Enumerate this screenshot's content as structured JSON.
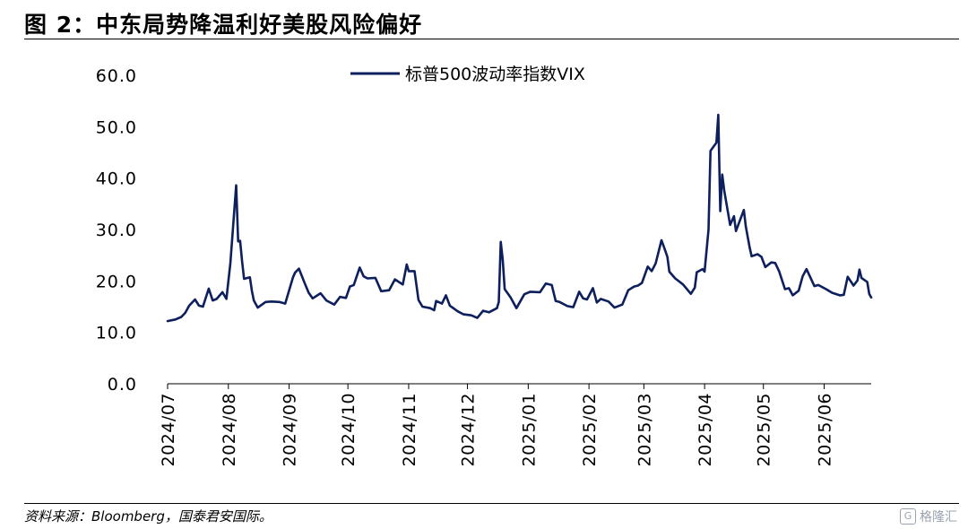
{
  "header": {
    "title": "图 2：中东局势降温利好美股风险偏好"
  },
  "footer": {
    "source": "资料来源：Bloomberg，国泰君安国际。"
  },
  "watermark": {
    "icon": "watermark-logo-icon",
    "text": "格隆汇"
  },
  "chart_data": {
    "type": "line",
    "series": [
      {
        "name": "标普500波动率指数VIX",
        "color": "#0d1f5c",
        "points": [
          [
            "2024-07-01",
            12.2
          ],
          [
            "2024-07-05",
            12.5
          ],
          [
            "2024-07-08",
            13.0
          ],
          [
            "2024-07-10",
            13.8
          ],
          [
            "2024-07-12",
            15.2
          ],
          [
            "2024-07-15",
            16.4
          ],
          [
            "2024-07-17",
            15.2
          ],
          [
            "2024-07-19",
            15.0
          ],
          [
            "2024-07-22",
            18.5
          ],
          [
            "2024-07-24",
            16.2
          ],
          [
            "2024-07-26",
            16.5
          ],
          [
            "2024-07-29",
            17.8
          ],
          [
            "2024-07-31",
            16.5
          ],
          [
            "2024-08-02",
            23.4
          ],
          [
            "2024-08-05",
            38.6
          ],
          [
            "2024-08-06",
            27.7
          ],
          [
            "2024-08-07",
            27.8
          ],
          [
            "2024-08-08",
            23.8
          ],
          [
            "2024-08-09",
            20.4
          ],
          [
            "2024-08-12",
            20.7
          ],
          [
            "2024-08-13",
            18.1
          ],
          [
            "2024-08-14",
            16.2
          ],
          [
            "2024-08-16",
            14.8
          ],
          [
            "2024-08-20",
            15.9
          ],
          [
            "2024-08-23",
            16.0
          ],
          [
            "2024-08-27",
            15.9
          ],
          [
            "2024-08-30",
            15.6
          ],
          [
            "2024-09-03",
            20.7
          ],
          [
            "2024-09-04",
            21.6
          ],
          [
            "2024-09-06",
            22.4
          ],
          [
            "2024-09-09",
            19.5
          ],
          [
            "2024-09-11",
            17.7
          ],
          [
            "2024-09-13",
            16.6
          ],
          [
            "2024-09-17",
            17.6
          ],
          [
            "2024-09-20",
            16.2
          ],
          [
            "2024-09-24",
            15.4
          ],
          [
            "2024-09-27",
            16.9
          ],
          [
            "2024-09-30",
            16.7
          ],
          [
            "2024-10-02",
            18.9
          ],
          [
            "2024-10-04",
            19.2
          ],
          [
            "2024-10-07",
            22.6
          ],
          [
            "2024-10-09",
            20.9
          ],
          [
            "2024-10-11",
            20.5
          ],
          [
            "2024-10-15",
            20.6
          ],
          [
            "2024-10-18",
            18.0
          ],
          [
            "2024-10-22",
            18.2
          ],
          [
            "2024-10-25",
            20.3
          ],
          [
            "2024-10-29",
            19.3
          ],
          [
            "2024-10-31",
            23.2
          ],
          [
            "2024-11-01",
            21.9
          ],
          [
            "2024-11-04",
            21.9
          ],
          [
            "2024-11-06",
            16.3
          ],
          [
            "2024-11-08",
            15.0
          ],
          [
            "2024-11-12",
            14.7
          ],
          [
            "2024-11-14",
            14.3
          ],
          [
            "2024-11-15",
            16.1
          ],
          [
            "2024-11-18",
            15.6
          ],
          [
            "2024-11-20",
            17.2
          ],
          [
            "2024-11-22",
            15.2
          ],
          [
            "2024-11-26",
            14.1
          ],
          [
            "2024-11-29",
            13.5
          ],
          [
            "2024-12-03",
            13.3
          ],
          [
            "2024-12-06",
            12.8
          ],
          [
            "2024-12-09",
            14.2
          ],
          [
            "2024-12-12",
            13.9
          ],
          [
            "2024-12-16",
            14.7
          ],
          [
            "2024-12-17",
            15.9
          ],
          [
            "2024-12-18",
            27.6
          ],
          [
            "2024-12-19",
            24.1
          ],
          [
            "2024-12-20",
            18.4
          ],
          [
            "2024-12-23",
            16.8
          ],
          [
            "2024-12-26",
            14.7
          ],
          [
            "2024-12-30",
            17.4
          ],
          [
            "2025-01-02",
            17.9
          ],
          [
            "2025-01-07",
            17.8
          ],
          [
            "2025-01-10",
            19.5
          ],
          [
            "2025-01-13",
            19.2
          ],
          [
            "2025-01-15",
            16.1
          ],
          [
            "2025-01-17",
            15.9
          ],
          [
            "2025-01-21",
            15.1
          ],
          [
            "2025-01-24",
            14.9
          ],
          [
            "2025-01-27",
            17.9
          ],
          [
            "2025-01-29",
            16.6
          ],
          [
            "2025-01-31",
            16.4
          ],
          [
            "2025-02-03",
            18.6
          ],
          [
            "2025-02-05",
            15.8
          ],
          [
            "2025-02-07",
            16.5
          ],
          [
            "2025-02-11",
            16.0
          ],
          [
            "2025-02-14",
            14.8
          ],
          [
            "2025-02-18",
            15.4
          ],
          [
            "2025-02-21",
            18.2
          ],
          [
            "2025-02-24",
            18.9
          ],
          [
            "2025-02-26",
            19.1
          ],
          [
            "2025-02-28",
            19.6
          ],
          [
            "2025-03-03",
            22.8
          ],
          [
            "2025-03-05",
            21.9
          ],
          [
            "2025-03-07",
            23.4
          ],
          [
            "2025-03-10",
            27.9
          ],
          [
            "2025-03-11",
            26.9
          ],
          [
            "2025-03-13",
            24.7
          ],
          [
            "2025-03-14",
            21.8
          ],
          [
            "2025-03-17",
            20.5
          ],
          [
            "2025-03-19",
            19.9
          ],
          [
            "2025-03-21",
            19.3
          ],
          [
            "2025-03-25",
            17.5
          ],
          [
            "2025-03-27",
            18.7
          ],
          [
            "2025-03-28",
            21.7
          ],
          [
            "2025-03-31",
            22.3
          ],
          [
            "2025-04-01",
            21.8
          ],
          [
            "2025-04-03",
            30.0
          ],
          [
            "2025-04-04",
            45.3
          ],
          [
            "2025-04-07",
            46.9
          ],
          [
            "2025-04-08",
            52.3
          ],
          [
            "2025-04-09",
            33.6
          ],
          [
            "2025-04-10",
            40.7
          ],
          [
            "2025-04-11",
            37.6
          ],
          [
            "2025-04-14",
            30.9
          ],
          [
            "2025-04-16",
            32.6
          ],
          [
            "2025-04-17",
            29.7
          ],
          [
            "2025-04-21",
            33.8
          ],
          [
            "2025-04-22",
            30.6
          ],
          [
            "2025-04-24",
            26.5
          ],
          [
            "2025-04-25",
            24.8
          ],
          [
            "2025-04-28",
            25.2
          ],
          [
            "2025-04-30",
            24.7
          ],
          [
            "2025-05-02",
            22.7
          ],
          [
            "2025-05-05",
            23.6
          ],
          [
            "2025-05-07",
            23.5
          ],
          [
            "2025-05-09",
            21.9
          ],
          [
            "2025-05-12",
            18.4
          ],
          [
            "2025-05-14",
            18.6
          ],
          [
            "2025-05-16",
            17.2
          ],
          [
            "2025-05-19",
            18.1
          ],
          [
            "2025-05-21",
            20.9
          ],
          [
            "2025-05-23",
            22.3
          ],
          [
            "2025-05-27",
            19.0
          ],
          [
            "2025-05-29",
            19.2
          ],
          [
            "2025-06-02",
            18.4
          ],
          [
            "2025-06-05",
            17.7
          ],
          [
            "2025-06-09",
            17.2
          ],
          [
            "2025-06-11",
            17.3
          ],
          [
            "2025-06-13",
            20.8
          ],
          [
            "2025-06-16",
            19.1
          ],
          [
            "2025-06-18",
            20.1
          ],
          [
            "2025-06-19",
            22.2
          ],
          [
            "2025-06-20",
            20.6
          ],
          [
            "2025-06-23",
            19.8
          ],
          [
            "2025-06-24",
            17.5
          ],
          [
            "2025-06-25",
            16.8
          ]
        ]
      }
    ],
    "ylim": [
      0,
      60
    ],
    "yticks": [
      "0.0",
      "10.0",
      "20.0",
      "30.0",
      "40.0",
      "50.0",
      "60.0"
    ],
    "xticks": [
      "2024/07",
      "2024/08",
      "2024/09",
      "2024/10",
      "2024/11",
      "2024/12",
      "2025/01",
      "2025/02",
      "2025/03",
      "2025/04",
      "2025/05",
      "2025/06"
    ],
    "xtick_dates": [
      "2024-07-01",
      "2024-08-01",
      "2024-09-01",
      "2024-10-01",
      "2024-11-01",
      "2024-12-01",
      "2025-01-01",
      "2025-02-01",
      "2025-03-01",
      "2025-04-01",
      "2025-05-01",
      "2025-06-01"
    ],
    "xrange": [
      "2024-07-01",
      "2025-06-25"
    ],
    "legend_position": "top-center",
    "grid": false
  }
}
